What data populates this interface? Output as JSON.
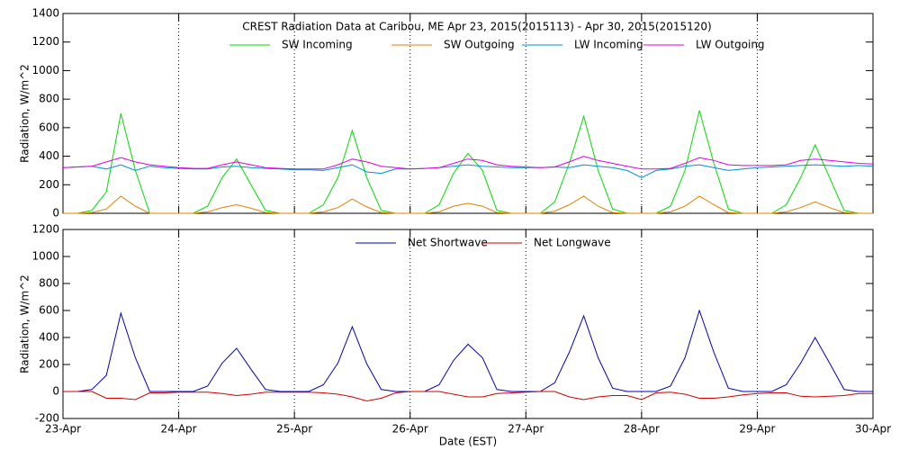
{
  "chart_data": [
    {
      "type": "line",
      "title": "CREST Radiation Data at Caribou, ME   Apr 23, 2015(2015113) - Apr 30, 2015(2015120)",
      "y_label": "Radiation, W/m^2",
      "x": [
        0,
        0.125,
        0.25,
        0.375,
        0.5,
        0.625,
        0.75,
        0.875,
        1,
        1.125,
        1.25,
        1.375,
        1.5,
        1.625,
        1.75,
        1.875,
        2,
        2.125,
        2.25,
        2.375,
        2.5,
        2.625,
        2.75,
        2.875,
        3,
        3.125,
        3.25,
        3.375,
        3.5,
        3.625,
        3.75,
        3.875,
        4,
        4.125,
        4.25,
        4.375,
        4.5,
        4.625,
        4.75,
        4.875,
        5,
        5.125,
        5.25,
        5.375,
        5.5,
        5.625,
        5.75,
        5.875,
        6,
        6.125,
        6.25,
        6.375,
        6.5,
        6.625,
        6.75,
        6.875,
        7
      ],
      "xlim": [
        0,
        7
      ],
      "ylim": [
        0,
        1400
      ],
      "yticks": [
        0,
        200,
        400,
        600,
        800,
        1000,
        1200,
        1400
      ],
      "grid": true,
      "series": [
        {
          "name": "SW Incoming",
          "color": "#00dd00",
          "values": [
            0,
            0,
            20,
            150,
            700,
            300,
            0,
            0,
            0,
            0,
            50,
            250,
            380,
            200,
            20,
            0,
            0,
            0,
            60,
            250,
            580,
            250,
            20,
            0,
            0,
            0,
            60,
            280,
            420,
            300,
            20,
            0,
            0,
            0,
            80,
            350,
            680,
            300,
            30,
            0,
            0,
            0,
            50,
            300,
            720,
            350,
            30,
            0,
            0,
            0,
            60,
            250,
            480,
            250,
            20,
            0,
            0
          ]
        },
        {
          "name": "SW Outgoing",
          "color": "#e08000",
          "values": [
            0,
            0,
            5,
            30,
            120,
            50,
            0,
            0,
            0,
            0,
            10,
            40,
            60,
            35,
            5,
            0,
            0,
            0,
            10,
            40,
            100,
            45,
            5,
            0,
            0,
            0,
            10,
            50,
            70,
            50,
            5,
            0,
            0,
            0,
            15,
            60,
            120,
            50,
            5,
            0,
            0,
            0,
            10,
            50,
            120,
            60,
            5,
            0,
            0,
            0,
            10,
            40,
            80,
            40,
            5,
            0,
            0
          ]
        },
        {
          "name": "LW Incoming",
          "color": "#0090d0",
          "values": [
            320,
            325,
            330,
            310,
            340,
            300,
            330,
            320,
            315,
            310,
            310,
            325,
            330,
            320,
            315,
            310,
            305,
            305,
            300,
            320,
            340,
            290,
            280,
            310,
            310,
            315,
            320,
            330,
            340,
            330,
            325,
            320,
            320,
            320,
            325,
            320,
            340,
            330,
            320,
            300,
            250,
            300,
            310,
            330,
            340,
            320,
            300,
            310,
            320,
            325,
            330,
            335,
            340,
            335,
            330,
            335,
            330
          ]
        },
        {
          "name": "LW Outgoing",
          "color": "#e000e0",
          "values": [
            320,
            325,
            330,
            360,
            390,
            360,
            340,
            330,
            320,
            315,
            315,
            340,
            360,
            340,
            320,
            315,
            310,
            310,
            310,
            340,
            380,
            360,
            330,
            320,
            310,
            315,
            320,
            350,
            380,
            370,
            340,
            330,
            325,
            320,
            325,
            360,
            400,
            370,
            350,
            330,
            310,
            310,
            315,
            350,
            390,
            370,
            340,
            335,
            335,
            335,
            340,
            370,
            380,
            370,
            360,
            350,
            345
          ]
        }
      ]
    },
    {
      "type": "line",
      "y_label": "Radiation, W/m^2",
      "x_label": "Date (EST)",
      "x": [
        0,
        0.125,
        0.25,
        0.375,
        0.5,
        0.625,
        0.75,
        0.875,
        1,
        1.125,
        1.25,
        1.375,
        1.5,
        1.625,
        1.75,
        1.875,
        2,
        2.125,
        2.25,
        2.375,
        2.5,
        2.625,
        2.75,
        2.875,
        3,
        3.125,
        3.25,
        3.375,
        3.5,
        3.625,
        3.75,
        3.875,
        4,
        4.125,
        4.25,
        4.375,
        4.5,
        4.625,
        4.75,
        4.875,
        5,
        5.125,
        5.25,
        5.375,
        5.5,
        5.625,
        5.75,
        5.875,
        6,
        6.125,
        6.25,
        6.375,
        6.5,
        6.625,
        6.75,
        6.875,
        7
      ],
      "xlim": [
        0,
        7
      ],
      "xticks": [
        {
          "value": 0,
          "label": "23-Apr"
        },
        {
          "value": 1,
          "label": "24-Apr"
        },
        {
          "value": 2,
          "label": "25-Apr"
        },
        {
          "value": 3,
          "label": "26-Apr"
        },
        {
          "value": 4,
          "label": "27-Apr"
        },
        {
          "value": 5,
          "label": "28-Apr"
        },
        {
          "value": 6,
          "label": "29-Apr"
        },
        {
          "value": 7,
          "label": "30-Apr"
        }
      ],
      "ylim": [
        -200,
        1200
      ],
      "yticks": [
        -200,
        0,
        200,
        400,
        600,
        800,
        1000,
        1200
      ],
      "grid": true,
      "series": [
        {
          "name": "Net Shortwave",
          "color": "#0000c0",
          "values": [
            0,
            0,
            15,
            120,
            580,
            250,
            0,
            0,
            0,
            0,
            40,
            210,
            320,
            165,
            15,
            0,
            0,
            0,
            50,
            210,
            480,
            205,
            15,
            0,
            0,
            0,
            50,
            230,
            350,
            250,
            15,
            0,
            0,
            0,
            65,
            290,
            560,
            250,
            25,
            0,
            0,
            0,
            40,
            250,
            600,
            290,
            25,
            0,
            0,
            0,
            50,
            210,
            400,
            210,
            15,
            0,
            0
          ]
        },
        {
          "name": "Net Longwave",
          "color": "#d00000",
          "values": [
            0,
            0,
            0,
            -50,
            -50,
            -60,
            -10,
            -10,
            -5,
            -5,
            -5,
            -15,
            -30,
            -20,
            -5,
            -5,
            -5,
            -5,
            -10,
            -20,
            -40,
            -70,
            -50,
            -10,
            0,
            0,
            0,
            -20,
            -40,
            -40,
            -15,
            -10,
            -5,
            0,
            0,
            -40,
            -60,
            -40,
            -30,
            -30,
            -60,
            -10,
            -5,
            -20,
            -50,
            -50,
            -40,
            -25,
            -15,
            -10,
            -10,
            -35,
            -40,
            -35,
            -30,
            -15,
            -15
          ]
        }
      ]
    }
  ]
}
